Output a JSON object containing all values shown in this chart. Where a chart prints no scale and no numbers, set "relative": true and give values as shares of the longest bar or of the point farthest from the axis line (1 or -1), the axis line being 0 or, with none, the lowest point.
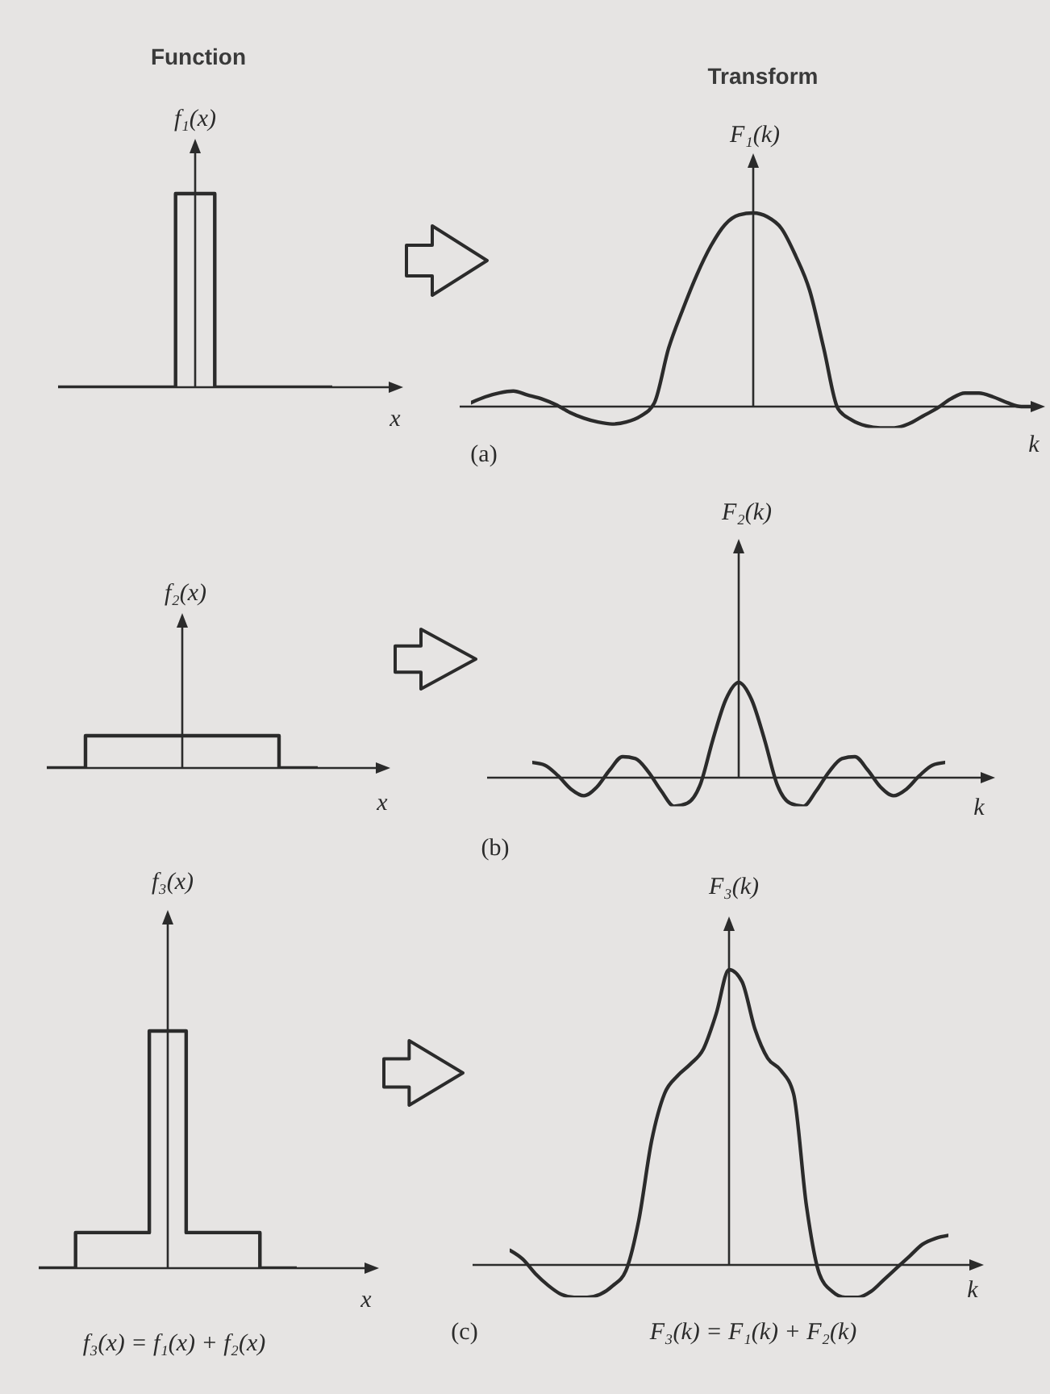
{
  "chart_data": [
    {
      "type": "step",
      "title": "Function",
      "ylabel": "f₁(x)",
      "xlabel": "x",
      "relative": true,
      "color": "#2b2b2b",
      "categories": [
        null,
        null,
        null,
        null,
        null,
        null,
        null,
        null,
        null,
        null,
        null,
        null,
        null,
        null,
        null,
        null,
        null,
        null,
        null,
        null,
        null,
        null
      ],
      "values": [
        0,
        0,
        0,
        0,
        0,
        0,
        0,
        0,
        0,
        1,
        1,
        1,
        0,
        0,
        0,
        0,
        0,
        0,
        0,
        0,
        0,
        0
      ]
    },
    {
      "type": "line",
      "title": "Transform",
      "ylabel": "F₁(k)",
      "xlabel": "k",
      "relative": true,
      "color": "#2b2b2b",
      "annotations": [
        "(a)"
      ],
      "categories": [
        null,
        null,
        null,
        null,
        null,
        null,
        null,
        null,
        null,
        null,
        null,
        null,
        null,
        null,
        null,
        null,
        null,
        null,
        null,
        null,
        null,
        null,
        null,
        null,
        null,
        null,
        null,
        null,
        null,
        null,
        null,
        null,
        null,
        null,
        null,
        null,
        null,
        null,
        null,
        null,
        null
      ],
      "values": [
        0.02,
        0.05,
        0.07,
        0.08,
        0.06,
        0.04,
        0.01,
        -0.03,
        -0.06,
        -0.08,
        -0.09,
        -0.08,
        -0.05,
        0.02,
        0.3,
        0.5,
        0.68,
        0.83,
        0.94,
        0.99,
        1,
        0.98,
        0.92,
        0.78,
        0.6,
        0.3,
        -0.01,
        -0.07,
        -0.1,
        -0.11,
        -0.11,
        -0.09,
        -0.05,
        -0.01,
        0.04,
        0.07,
        0.07,
        0.05,
        0.02,
        0,
        0
      ]
    },
    {
      "type": "step",
      "ylabel": "f₂(x)",
      "xlabel": "x",
      "relative": true,
      "color": "#2b2b2b",
      "categories": [
        null,
        null,
        null,
        null,
        null,
        null,
        null,
        null,
        null,
        null,
        null,
        null,
        null,
        null,
        null,
        null,
        null,
        null,
        null,
        null,
        null,
        null
      ],
      "values": [
        0,
        0,
        0,
        1,
        1,
        1,
        1,
        1,
        1,
        1,
        1,
        1,
        1,
        1,
        1,
        1,
        1,
        1,
        0,
        0,
        0,
        0
      ]
    },
    {
      "type": "line",
      "ylabel": "F₂(k)",
      "xlabel": "k",
      "relative": true,
      "color": "#2b2b2b",
      "annotations": [
        "(b)"
      ],
      "categories": [
        null,
        null,
        null,
        null,
        null,
        null,
        null,
        null,
        null,
        null,
        null,
        null,
        null,
        null,
        null,
        null,
        null,
        null,
        null,
        null,
        null,
        null,
        null,
        null,
        null,
        null,
        null,
        null,
        null,
        null,
        null,
        null,
        null
      ],
      "values": [
        0.16,
        0.13,
        0.02,
        -0.12,
        -0.19,
        -0.1,
        0.08,
        0.22,
        0.2,
        0.06,
        -0.14,
        -0.3,
        -0.27,
        -0.08,
        0.4,
        0.82,
        1,
        0.82,
        0.4,
        -0.08,
        -0.27,
        -0.3,
        -0.14,
        0.06,
        0.2,
        0.22,
        0.08,
        -0.1,
        -0.19,
        -0.12,
        0.02,
        0.13,
        0.16
      ]
    },
    {
      "type": "step",
      "ylabel": "f₃(x)",
      "xlabel": "x",
      "relative": true,
      "color": "#2b2b2b",
      "annotations": [
        "f₃(x) = f₁(x) + f₂(x)"
      ],
      "categories": [
        null,
        null,
        null,
        null,
        null,
        null,
        null,
        null,
        null,
        null,
        null,
        null,
        null,
        null,
        null,
        null,
        null,
        null,
        null,
        null,
        null,
        null
      ],
      "values": [
        0,
        0,
        0,
        0.15,
        0.15,
        0.15,
        0.15,
        0.15,
        0.15,
        1,
        1,
        1,
        0.15,
        0.15,
        0.15,
        0.15,
        0.15,
        0.15,
        0,
        0,
        0,
        0
      ]
    },
    {
      "type": "line",
      "ylabel": "F₃(k)",
      "xlabel": "k",
      "relative": true,
      "color": "#2b2b2b",
      "annotations": [
        "(c)",
        "F₃(k) = F₁(k) + F₂(k)"
      ],
      "categories": [
        null,
        null,
        null,
        null,
        null,
        null,
        null,
        null,
        null,
        null,
        null,
        null,
        null,
        null,
        null,
        null,
        null,
        null,
        null,
        null,
        null,
        null,
        null,
        null,
        null,
        null,
        null,
        null,
        null,
        null,
        null,
        null,
        null,
        null,
        null
      ],
      "values": [
        0.05,
        0.02,
        -0.03,
        -0.07,
        -0.1,
        -0.11,
        -0.11,
        -0.1,
        -0.07,
        -0.02,
        0.15,
        0.42,
        0.58,
        0.64,
        0.68,
        0.73,
        0.85,
        1,
        0.96,
        0.8,
        0.7,
        0.66,
        0.58,
        0.2,
        -0.03,
        -0.09,
        -0.11,
        -0.11,
        -0.09,
        -0.05,
        -0.01,
        0.03,
        0.07,
        0.09,
        0.1
      ]
    }
  ]
}
